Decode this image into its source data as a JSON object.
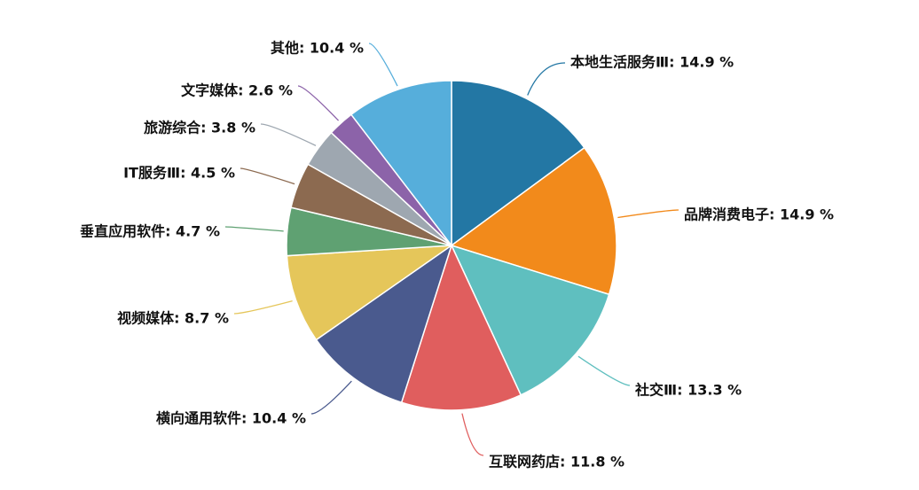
{
  "chart_data": {
    "type": "pie",
    "slices": [
      {
        "label": "本地生活服务Ⅲ",
        "value": 14.9,
        "color": "#2377a4"
      },
      {
        "label": "品牌消费电子",
        "value": 14.9,
        "color": "#f28a1b"
      },
      {
        "label": "社交Ⅲ",
        "value": 13.3,
        "color": "#5fbfbf"
      },
      {
        "label": "互联网药店",
        "value": 11.8,
        "color": "#e05e5e"
      },
      {
        "label": "横向通用软件",
        "value": 10.4,
        "color": "#4a5a8e"
      },
      {
        "label": "视频媒体",
        "value": 8.7,
        "color": "#e5c65a"
      },
      {
        "label": "垂直应用软件",
        "value": 4.7,
        "color": "#5fa172"
      },
      {
        "label": "IT服务Ⅲ",
        "value": 4.5,
        "color": "#8c6a50"
      },
      {
        "label": "旅游综合",
        "value": 3.8,
        "color": "#9ea7b0"
      },
      {
        "label": "文字媒体",
        "value": 2.6,
        "color": "#8c63a9"
      },
      {
        "label": "其他",
        "value": 10.4,
        "color": "#56aedb"
      }
    ],
    "value_suffix": " %",
    "label_separator": ": ",
    "legend": "none"
  }
}
